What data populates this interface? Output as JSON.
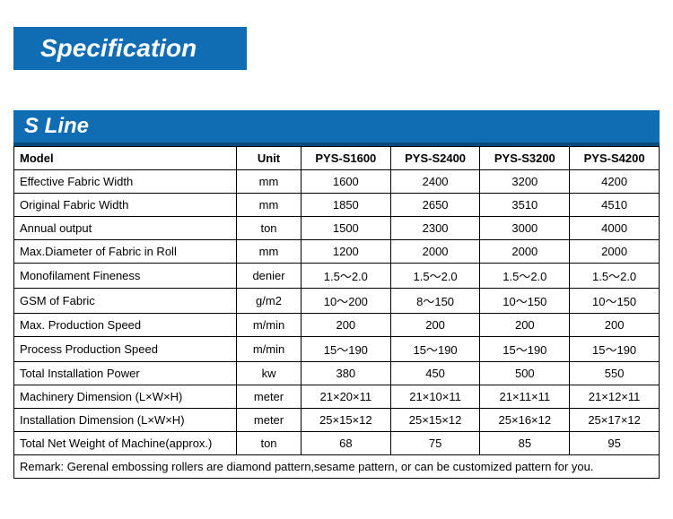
{
  "title": "Specification",
  "section": "S Line",
  "colors": {
    "band_bg": "#106cb3",
    "band_text": "#ffffff",
    "band_border_bottom": "#0a4a7a",
    "table_border": "#000000",
    "page_bg": "#ffffff"
  },
  "typography": {
    "title_fontsize": 28,
    "section_fontsize": 24,
    "cell_fontsize": 13,
    "font_family": "Arial"
  },
  "table": {
    "header": {
      "param_label": "Model",
      "unit_label": "Unit",
      "models": [
        "PYS-S1600",
        "PYS-S2400",
        "PYS-S3200",
        "PYS-S4200"
      ]
    },
    "col_widths_pct": [
      34.5,
      10,
      13.875,
      13.875,
      13.875,
      13.875
    ],
    "rows": [
      {
        "param": "Effective Fabric Width",
        "unit": "mm",
        "values": [
          "1600",
          "2400",
          "3200",
          "4200"
        ]
      },
      {
        "param": "Original Fabric Width",
        "unit": "mm",
        "values": [
          "1850",
          "2650",
          "3510",
          "4510"
        ]
      },
      {
        "param": "Annual output",
        "unit": "ton",
        "values": [
          "1500",
          "2300",
          "3000",
          "4000"
        ]
      },
      {
        "param": "Max.Diameter of Fabric in Roll",
        "unit": "mm",
        "values": [
          "1200",
          "2000",
          "2000",
          "2000"
        ]
      },
      {
        "param": "Monofilament Fineness",
        "unit": "denier",
        "values": [
          "1.5～2.0",
          "1.5～2.0",
          "1.5～2.0",
          "1.5～2.0"
        ]
      },
      {
        "param": "GSM of Fabric",
        "unit": "g/m2",
        "values": [
          "10～200",
          "8～150",
          "10～150",
          "10～150"
        ]
      },
      {
        "param": "Max. Production Speed",
        "unit": "m/min",
        "values": [
          "200",
          "200",
          "200",
          "200"
        ]
      },
      {
        "param": "Process Production Speed",
        "unit": "m/min",
        "values": [
          "15～190",
          "15～190",
          "15～190",
          "15～190"
        ]
      },
      {
        "param": "Total Installation Power",
        "unit": "kw",
        "values": [
          "380",
          "450",
          "500",
          "550"
        ]
      },
      {
        "param": "Machinery Dimension (L×W×H)",
        "unit": "meter",
        "values": [
          "21×20×11",
          "21×10×11",
          "21×11×11",
          "21×12×11"
        ]
      },
      {
        "param": "Installation Dimension (L×W×H)",
        "unit": "meter",
        "values": [
          "25×15×12",
          "25×15×12",
          "25×16×12",
          "25×17×12"
        ]
      },
      {
        "param": "Total Net Weight of Machine(approx.)",
        "unit": "ton",
        "values": [
          "68",
          "75",
          "85",
          "95"
        ]
      }
    ],
    "remark": "Remark: Gerenal embossing rollers are diamond pattern,sesame pattern, or can be customized pattern for you."
  }
}
